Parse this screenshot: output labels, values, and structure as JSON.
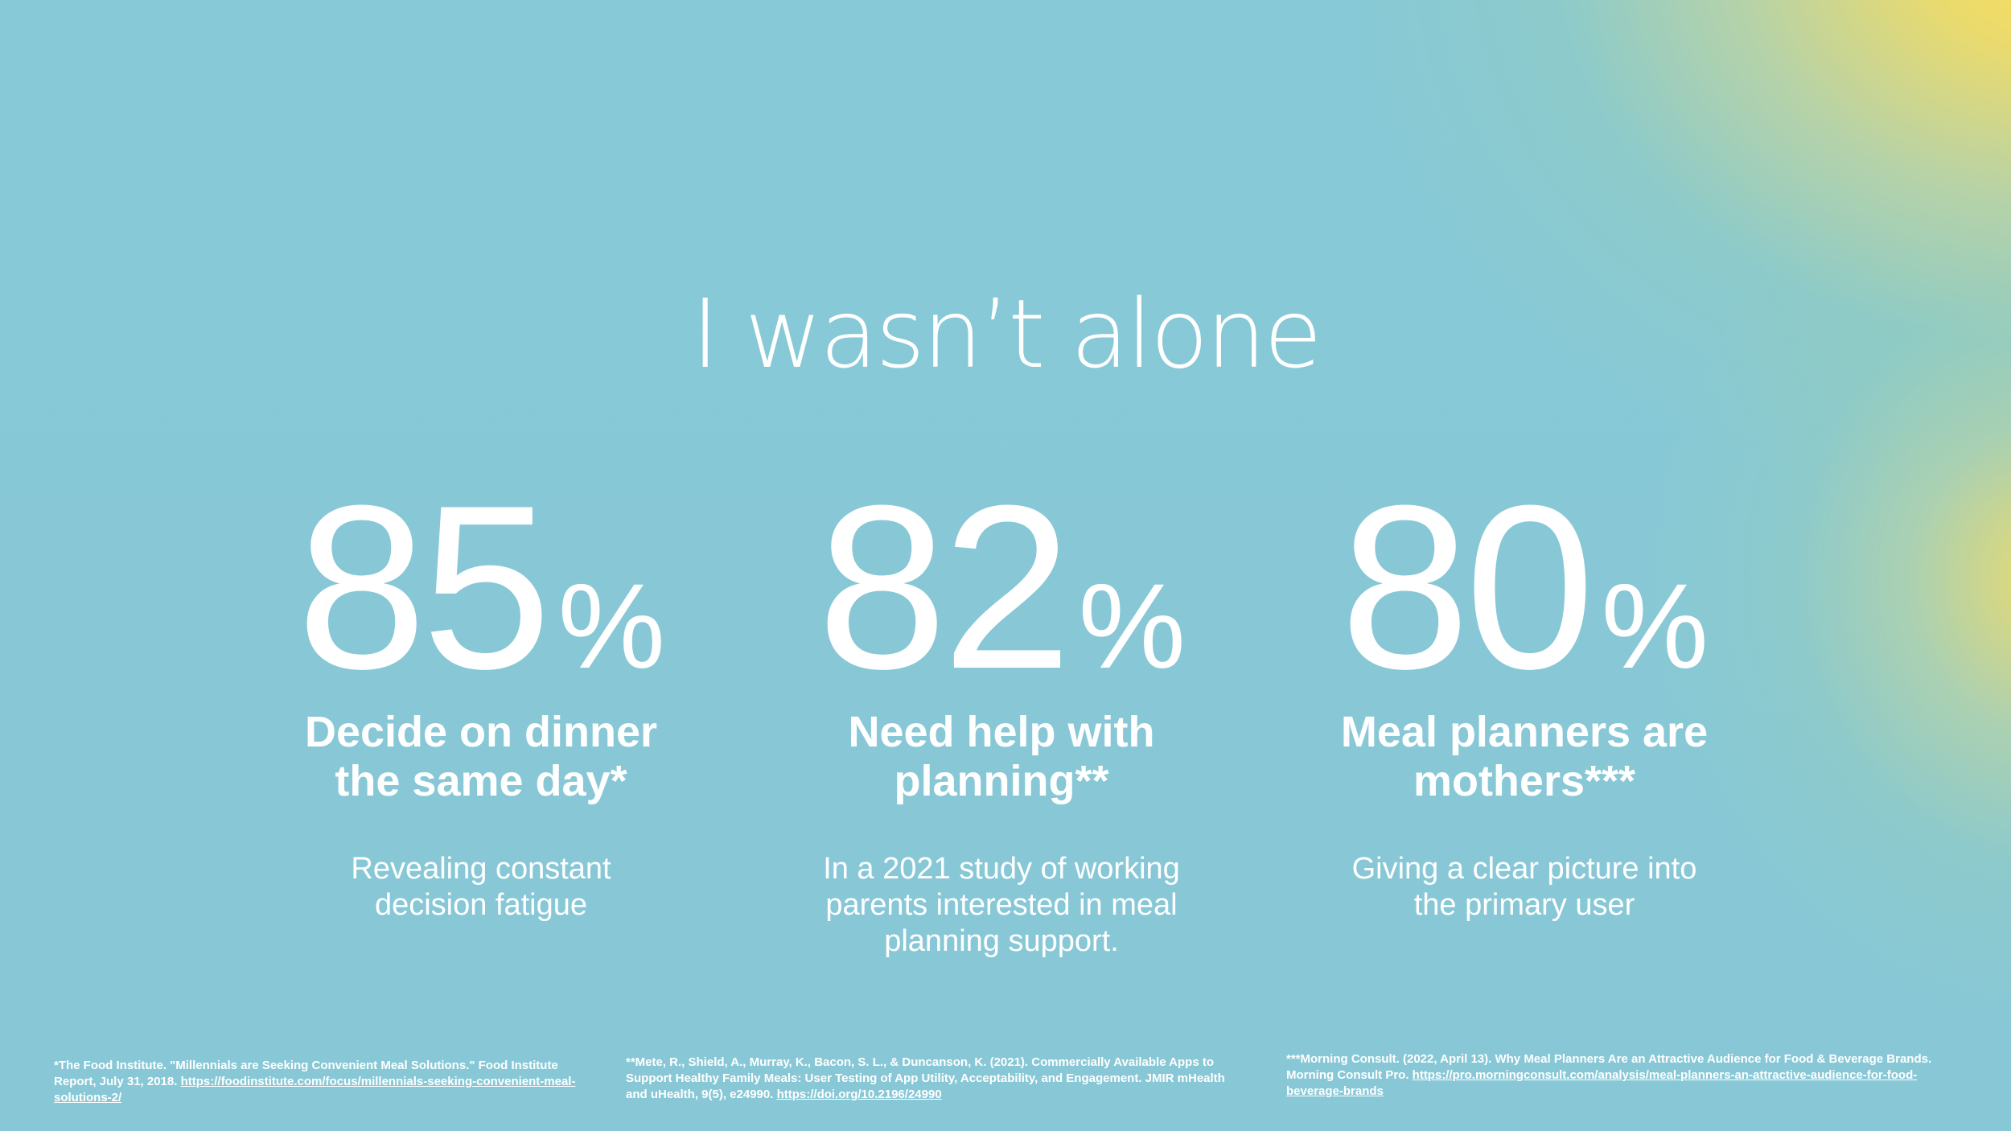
{
  "slide": {
    "title": "I wasn’t alone"
  },
  "stats": [
    {
      "number": "85",
      "percent_sign": "%",
      "heading_line1": "Decide on dinner",
      "heading_line2": "the same day*",
      "description_line1": "Revealing constant",
      "description_line2": "decision fatigue",
      "description_line3": ""
    },
    {
      "number": "82",
      "percent_sign": "%",
      "heading_line1": "Need help with",
      "heading_line2": "planning**",
      "description_line1": "In a 2021 study of working",
      "description_line2": "parents interested in meal",
      "description_line3": "planning support."
    },
    {
      "number": "80",
      "percent_sign": "%",
      "heading_line1": "Meal planners are",
      "heading_line2": "mothers***",
      "description_line1": "Giving a clear picture into",
      "description_line2": "the primary user",
      "description_line3": ""
    }
  ],
  "footnotes": [
    {
      "text": "*The Food Institute. \"Millennials are Seeking Convenient Meal Solutions.\" Food Institute Report, July 31, 2018.",
      "link": "https://foodinstitute.com/focus/millennials-seeking-convenient-meal-solutions-2/"
    },
    {
      "text": "**Mete, R., Shield, A., Murray, K., Bacon, S. L., & Duncanson, K. (2021). Commercially Available Apps to Support Healthy Family Meals: User Testing of App Utility, Acceptability, and Engagement. JMIR mHealth and uHealth, 9(5), e24990.",
      "link": "https://doi.org/10.2196/24990"
    },
    {
      "text": "***Morning Consult. (2022, April 13). Why Meal Planners Are an Attractive Audience for Food & Beverage Brands. Morning Consult Pro.",
      "link": "https://pro.morningconsult.com/analysis/meal-planners-an-attractive-audience-for-food-beverage-brands"
    }
  ],
  "colors": {
    "background": "#88c8d6",
    "accent_gradient": "#f7dc5e",
    "text": "#ffffff"
  }
}
